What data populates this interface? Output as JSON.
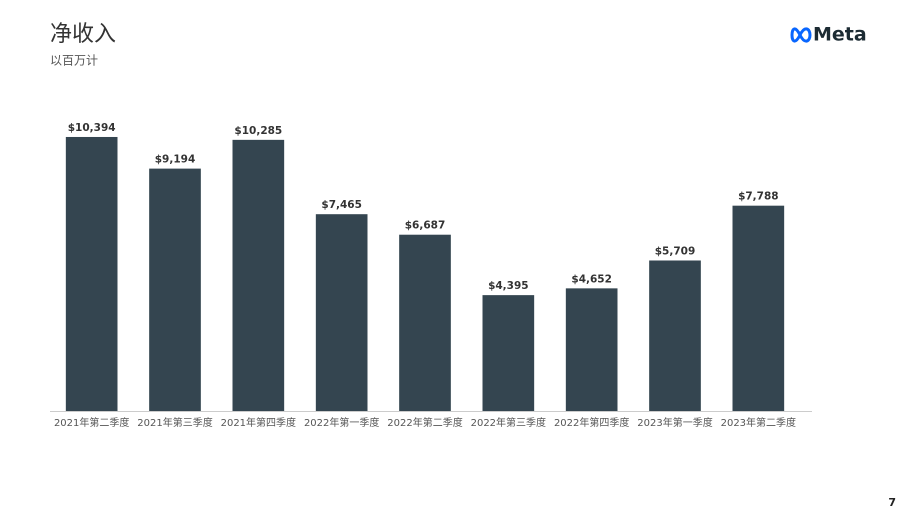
{
  "chart_data": {
    "type": "bar",
    "title": "净收入",
    "subtitle": "以百万计",
    "categories": [
      "2021年第二季度",
      "2021年第三季度",
      "2021年第四季度",
      "2022年第一季度",
      "2022年第二季度",
      "2022年第三季度",
      "2022年第四季度",
      "2023年第一季度",
      "2023年第二季度"
    ],
    "values": [
      10394,
      9194,
      10285,
      7465,
      6687,
      4395,
      4652,
      5709,
      7788
    ],
    "value_labels": [
      "$10,394",
      "$9,194",
      "$10,285",
      "$7,465",
      "$6,687",
      "$4,395",
      "$4,652",
      "$5,709",
      "$7,788"
    ],
    "color": "#344550",
    "ylim": [
      0,
      11000
    ]
  },
  "logo": "Meta",
  "page_number": "7"
}
